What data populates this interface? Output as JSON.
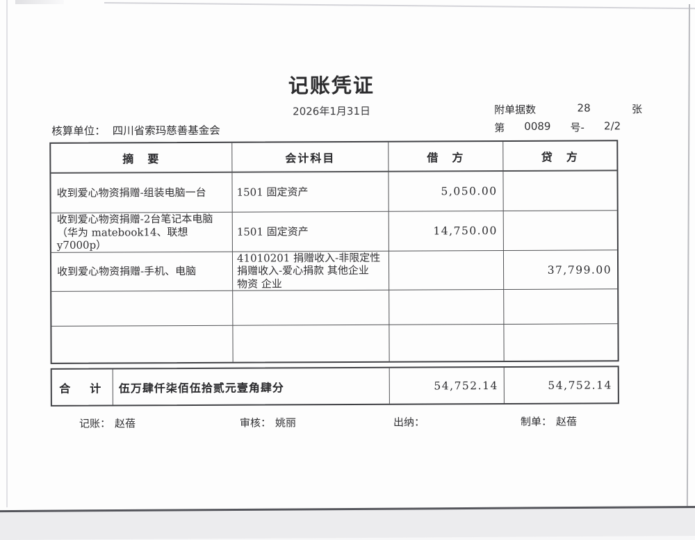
{
  "header": {
    "title": "记账凭证",
    "date": "2026年1月31日",
    "attach": {
      "label": "附单据数",
      "count": "28",
      "unit": "张"
    },
    "voucher_no": {
      "prefix": "第",
      "number": "0089",
      "suffix": "号-",
      "page": "2/2"
    },
    "unit": {
      "label": "核算单位：",
      "value": "四川省索玛慈善基金会"
    }
  },
  "table": {
    "headers": {
      "summary": "摘　要",
      "account": "会计科目",
      "debit": "借　方",
      "credit": "贷　方"
    },
    "rows": [
      {
        "summary": "收到爱心物资捐赠-组装电脑一台",
        "account": "1501 固定资产",
        "debit": "5,050.00",
        "credit": ""
      },
      {
        "summary": "收到爱心物资捐赠-2台笔记本电脑\n（华为 matebook14、联想y7000p）",
        "account": "1501 固定资产",
        "debit": "14,750.00",
        "credit": ""
      },
      {
        "summary": "收到爱心物资捐赠-手机、电脑",
        "account": "41010201 捐赠收入-非限定性\n捐赠收入-爱心捐款 其他企业\n物资 企业",
        "debit": "",
        "credit": "37,799.00"
      },
      {
        "summary": "",
        "account": "",
        "debit": "",
        "credit": ""
      },
      {
        "summary": "",
        "account": "",
        "debit": "",
        "credit": ""
      }
    ],
    "total": {
      "label": "合　计",
      "amount_words": "伍万肆仟柒佰伍拾贰元壹角肆分",
      "debit": "54,752.14",
      "credit": "54,752.14"
    }
  },
  "footer": {
    "bookkeeper": {
      "label": "记账：",
      "name": "赵蓓"
    },
    "reviewer": {
      "label": "审核：",
      "name": "姚丽"
    },
    "cashier": {
      "label": "出纳：",
      "name": ""
    },
    "preparer": {
      "label": "制单：",
      "name": "赵蓓"
    }
  }
}
